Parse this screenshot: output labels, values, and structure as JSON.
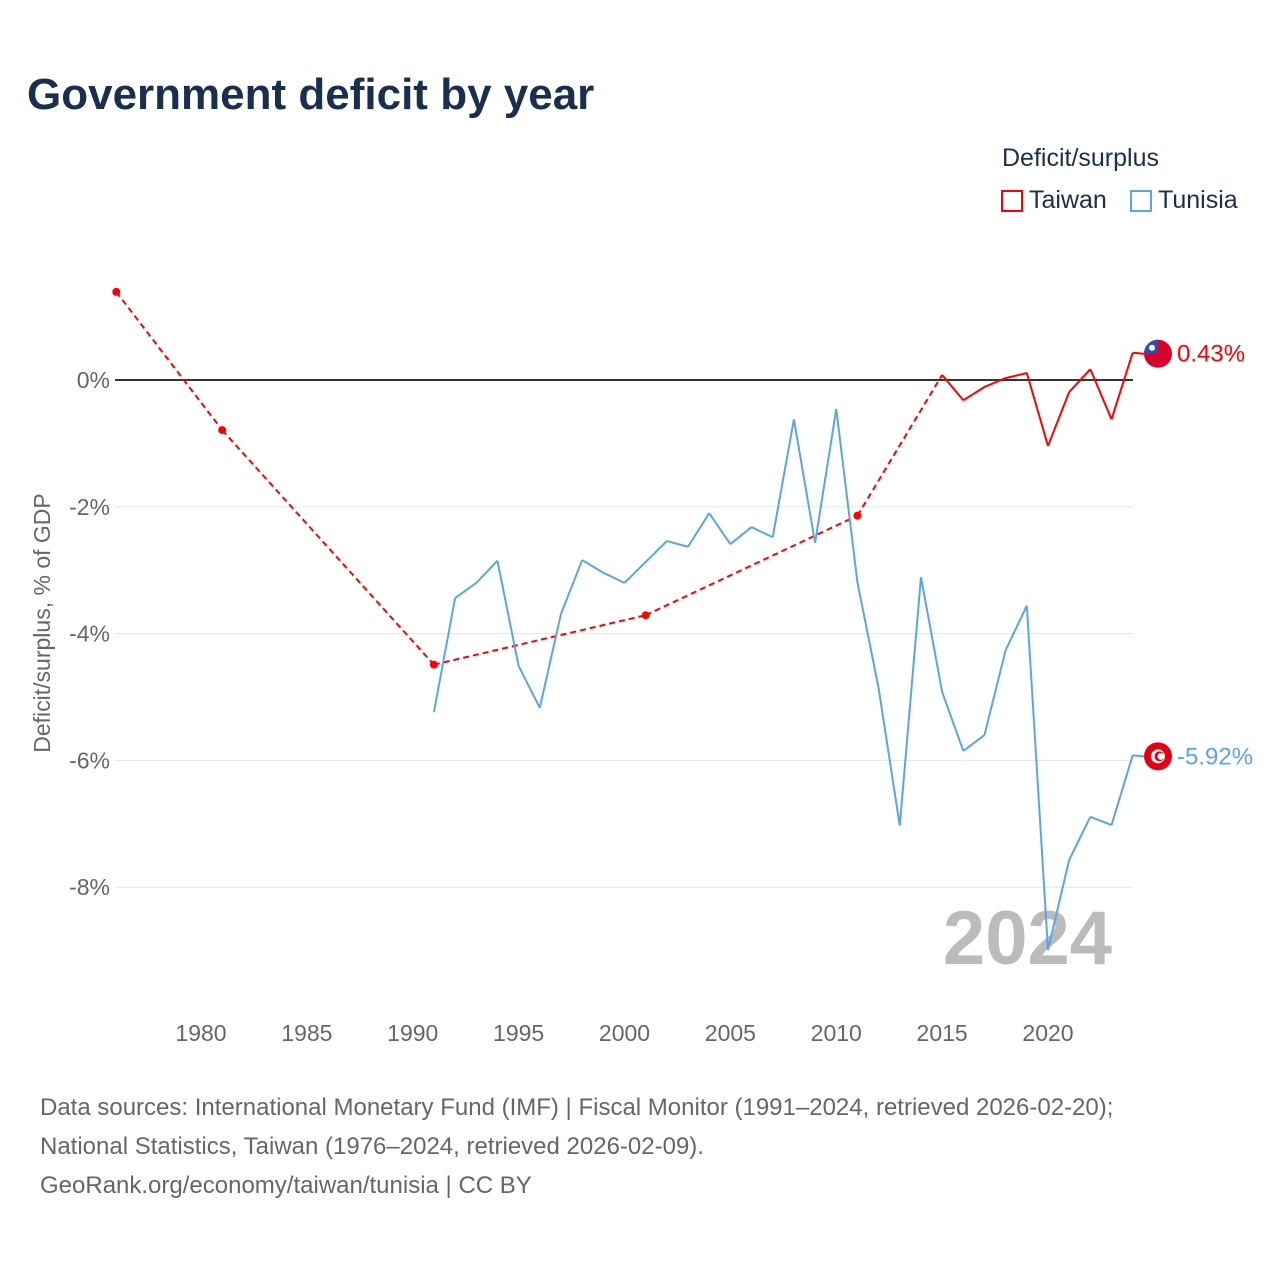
{
  "chart_data": {
    "type": "line",
    "title": "Government deficit by year",
    "ylabel": "Deficit/surplus, % of GDP",
    "xlabel": "",
    "xlim": [
      1975.5,
      2024
    ],
    "ylim": [
      -9.8,
      2.3
    ],
    "x_ticks": [
      1980,
      1985,
      1990,
      1995,
      2000,
      2005,
      2010,
      2015,
      2020
    ],
    "y_ticks": [
      0,
      -2,
      -4,
      -6,
      -8
    ],
    "y_tick_labels": [
      "0%",
      "-2%",
      "-4%",
      "-6%",
      "-8%"
    ],
    "grid": true,
    "legend": {
      "title": "Deficit/surplus",
      "placement": "top-right"
    },
    "year_watermark": "2024",
    "series": [
      {
        "name": "Taiwan",
        "color": "#ff0000",
        "end_label": "0.43%",
        "flag": "taiwan-flag",
        "x": [
          1976,
          1981,
          1991,
          2001,
          2011,
          2015,
          2016,
          2017,
          2018,
          2019,
          2020,
          2021,
          2022,
          2023,
          2024
        ],
        "values": [
          1.39,
          -0.79,
          -4.49,
          -3.71,
          -2.14,
          0.08,
          -0.32,
          -0.11,
          0.03,
          0.11,
          -1.04,
          -0.19,
          0.17,
          -0.62,
          0.43
        ]
      },
      {
        "name": "Tunisia",
        "color": "#5aa5e8",
        "end_label": "-5.92%",
        "flag": "tunisia-flag",
        "x": [
          1991,
          1992,
          1993,
          1994,
          1995,
          1996,
          1997,
          1998,
          1999,
          2000,
          2001,
          2002,
          2003,
          2004,
          2005,
          2006,
          2007,
          2008,
          2009,
          2010,
          2011,
          2012,
          2013,
          2014,
          2015,
          2016,
          2017,
          2018,
          2019,
          2020,
          2021,
          2022,
          2023,
          2024
        ],
        "values": [
          -5.24,
          -3.44,
          -3.2,
          -2.85,
          -4.51,
          -5.17,
          -3.69,
          -2.84,
          -3.04,
          -3.2,
          -2.87,
          -2.54,
          -2.63,
          -2.1,
          -2.59,
          -2.32,
          -2.48,
          -0.62,
          -2.57,
          -0.46,
          -3.19,
          -4.86,
          -7.03,
          -3.11,
          -4.92,
          -5.85,
          -5.6,
          -4.26,
          -3.56,
          -8.99,
          -7.57,
          -6.89,
          -7.02,
          -5.92
        ]
      }
    ]
  },
  "footer": {
    "line1": "Data sources: International Monetary Fund (IMF) | Fiscal Monitor (1991–2024, retrieved 2026-02-20);",
    "line2": "National Statistics, Taiwan (1976–2024, retrieved 2026-02-09).",
    "line3": "GeoRank.org/economy/taiwan/tunisia | CC BY"
  }
}
